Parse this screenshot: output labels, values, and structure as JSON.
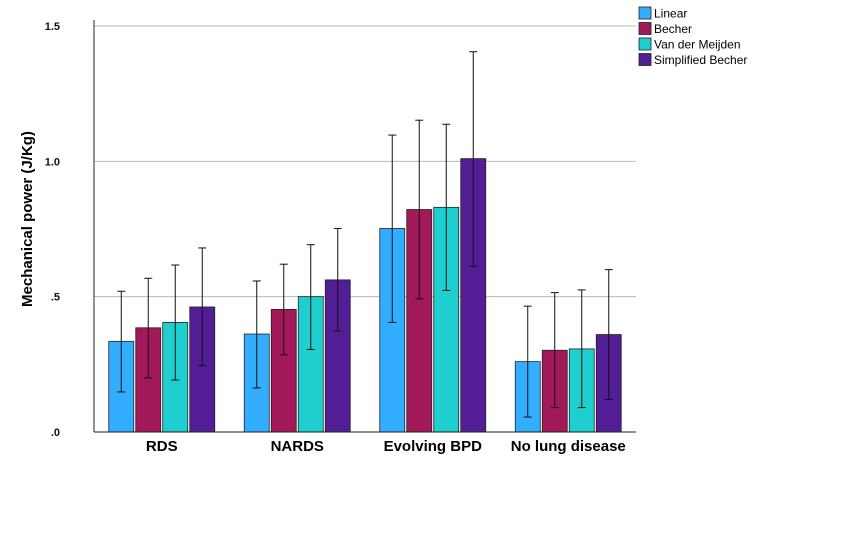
{
  "chart_data": {
    "type": "bar",
    "title": "",
    "xlabel": "",
    "ylabel": "Mechanical power (J/Kg)",
    "ylim": [
      0,
      1.5
    ],
    "yticks": [
      {
        "value": 0,
        "label": ".0"
      },
      {
        "value": 0.5,
        "label": ".5"
      },
      {
        "value": 1.0,
        "label": "1.0"
      },
      {
        "value": 1.5,
        "label": "1.5"
      }
    ],
    "grid": true,
    "legend_position": "top-right",
    "categories": [
      "RDS",
      "NARDS",
      "Evolving BPD",
      "No lung disease"
    ],
    "series": [
      {
        "name": "Linear",
        "color": "#33adff",
        "values": [
          0.335,
          0.362,
          0.752,
          0.26
        ],
        "error_low": [
          0.148,
          0.163,
          0.405,
          0.055
        ],
        "error_high": [
          0.52,
          0.558,
          1.097,
          0.465
        ]
      },
      {
        "name": "Becher",
        "color": "#a2195a",
        "values": [
          0.385,
          0.453,
          0.822,
          0.302
        ],
        "error_low": [
          0.2,
          0.285,
          0.492,
          0.09
        ],
        "error_high": [
          0.568,
          0.62,
          1.152,
          0.515
        ]
      },
      {
        "name": "Van der Meijden",
        "color": "#1fcfcf",
        "values": [
          0.405,
          0.5,
          0.83,
          0.307
        ],
        "error_low": [
          0.192,
          0.305,
          0.523,
          0.09
        ],
        "error_high": [
          0.617,
          0.692,
          1.137,
          0.525
        ]
      },
      {
        "name": "Simplified Becher",
        "color": "#531d95",
        "values": [
          0.462,
          0.562,
          1.01,
          0.36
        ],
        "error_low": [
          0.245,
          0.373,
          0.612,
          0.12
        ],
        "error_high": [
          0.68,
          0.752,
          1.405,
          0.6
        ]
      }
    ]
  }
}
